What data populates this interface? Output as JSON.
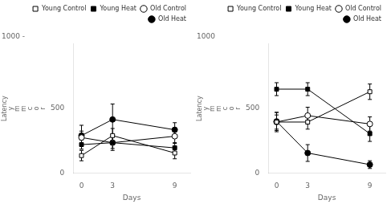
{
  "chart_data": [
    {
      "type": "line",
      "annotations": [
        "1000 -"
      ],
      "xlabel": "Days",
      "ylabel": "Latency\ny\nm\nm\nc\no\nr",
      "x": [
        0,
        3,
        9
      ],
      "xlim": [
        -0.8,
        10.5
      ],
      "xticks": [
        0,
        3,
        9
      ],
      "ylim": [
        0,
        1000
      ],
      "yticks": [
        0,
        500
      ],
      "grid": false,
      "legend": "upper right",
      "series": [
        {
          "name": "Young Control",
          "color": "black",
          "marker": "square-open",
          "values": [
            135,
            290,
            155
          ],
          "yerr": [
            40,
            55,
            45
          ]
        },
        {
          "name": "Young Heat",
          "color": "black",
          "marker": "square",
          "values": [
            220,
            235,
            195
          ],
          "yerr": [
            35,
            45,
            40
          ]
        },
        {
          "name": "Old Control",
          "color": "black",
          "marker": "circle-open",
          "values": [
            275,
            235,
            285
          ],
          "yerr": [
            50,
            60,
            55
          ]
        },
        {
          "name": "Old Heat",
          "color": "black",
          "marker": "circle",
          "values": [
            290,
            415,
            335
          ],
          "yerr": [
            80,
            120,
            55
          ]
        }
      ]
    },
    {
      "type": "line",
      "annotations": [
        "1000"
      ],
      "xlabel": "Days",
      "ylabel": "Latency\ny\nm\nm\nc\no\nr",
      "x": [
        0,
        3,
        9
      ],
      "xlim": [
        -0.8,
        10.5
      ],
      "xticks": [
        0,
        3,
        9
      ],
      "ylim": [
        0,
        1000
      ],
      "yticks": [
        0,
        500
      ],
      "grid": false,
      "legend": "upper right",
      "series": [
        {
          "name": "Young Control",
          "color": "black",
          "marker": "square-open",
          "values": [
            395,
            395,
            630
          ],
          "yerr": [
            55,
            55,
            60
          ]
        },
        {
          "name": "Young Heat",
          "color": "black",
          "marker": "square",
          "values": [
            650,
            650,
            305
          ],
          "yerr": [
            50,
            50,
            60
          ]
        },
        {
          "name": "Old Control",
          "color": "black",
          "marker": "circle-open",
          "values": [
            395,
            445,
            380
          ],
          "yerr": [
            75,
            65,
            55
          ]
        },
        {
          "name": "Old Heat",
          "color": "black",
          "marker": "circle",
          "values": [
            400,
            155,
            65
          ],
          "yerr": [
            70,
            65,
            30
          ]
        }
      ]
    }
  ]
}
